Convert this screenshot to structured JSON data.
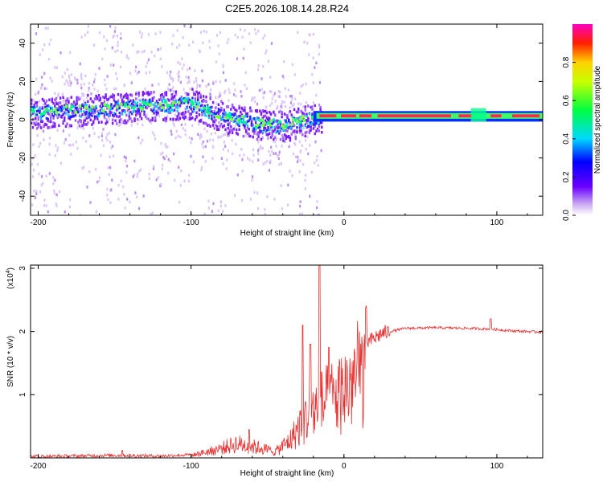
{
  "title": "C2E5.2026.108.14.28.R24",
  "chart_data": [
    {
      "type": "heatmap",
      "name": "spectrogram",
      "xlabel": "Height of straight line (km)",
      "ylabel": "Frequency (Hz)",
      "xlim": [
        -205,
        130
      ],
      "ylim": [
        -50,
        50
      ],
      "x_ticks": [
        -200,
        -100,
        0,
        100
      ],
      "x_tick_labels": [
        "-200",
        "-100",
        "0",
        "100"
      ],
      "y_ticks": [
        -40,
        -20,
        0,
        20,
        40
      ],
      "y_tick_labels": [
        "-40",
        "-20",
        "0",
        "20",
        "40"
      ],
      "ridge": [
        {
          "x": -205,
          "f": 4
        },
        {
          "x": -180,
          "f": 5
        },
        {
          "x": -160,
          "f": 6
        },
        {
          "x": -140,
          "f": 7
        },
        {
          "x": -120,
          "f": 8
        },
        {
          "x": -100,
          "f": 9
        },
        {
          "x": -90,
          "f": 5
        },
        {
          "x": -75,
          "f": 1
        },
        {
          "x": -55,
          "f": -2
        },
        {
          "x": -40,
          "f": -3
        },
        {
          "x": -25,
          "f": 0
        },
        {
          "x": -15,
          "f": 2
        },
        {
          "x": 0,
          "f": 2
        },
        {
          "x": 130,
          "f": 2
        }
      ],
      "colorbar": {
        "label": "Normalized spectral amplitude",
        "range": [
          0,
          1
        ],
        "ticks": [
          0.0,
          0.2,
          0.4,
          0.6,
          0.8
        ],
        "tick_labels": [
          "0.0",
          "0.2",
          "0.4",
          "0.6",
          "0.8"
        ]
      }
    },
    {
      "type": "line",
      "name": "snr",
      "xlabel": "Height of straight line (km)",
      "ylabel": "SNR (10 * v/v)",
      "scale_label": "(x10",
      "scale_exponent": "4",
      "xlim": [
        -205,
        130
      ],
      "ylim": [
        0,
        3.05
      ],
      "x_ticks": [
        -200,
        -100,
        0,
        100
      ],
      "x_tick_labels": [
        "-200",
        "-100",
        "0",
        "100"
      ],
      "y_ticks": [
        1,
        2,
        3
      ],
      "y_tick_labels": [
        "1",
        "2",
        "3"
      ],
      "line_color": "#e83030",
      "envelope": [
        {
          "x": -205,
          "y": 0.02
        },
        {
          "x": -150,
          "y": 0.04
        },
        {
          "x": -120,
          "y": 0.03
        },
        {
          "x": -100,
          "y": 0.05
        },
        {
          "x": -85,
          "y": 0.15
        },
        {
          "x": -70,
          "y": 0.28
        },
        {
          "x": -55,
          "y": 0.2
        },
        {
          "x": -45,
          "y": 0.12
        },
        {
          "x": -35,
          "y": 0.35
        },
        {
          "x": -25,
          "y": 0.8
        },
        {
          "x": -15,
          "y": 1.05
        },
        {
          "x": -5,
          "y": 1.2
        },
        {
          "x": 5,
          "y": 1.5
        },
        {
          "x": 15,
          "y": 1.82
        },
        {
          "x": 25,
          "y": 1.97
        },
        {
          "x": 40,
          "y": 2.05
        },
        {
          "x": 60,
          "y": 2.06
        },
        {
          "x": 80,
          "y": 2.05
        },
        {
          "x": 95,
          "y": 2.04
        },
        {
          "x": 110,
          "y": 2.01
        },
        {
          "x": 130,
          "y": 1.99
        }
      ],
      "spikes": [
        {
          "x": -145,
          "y": 0.12
        },
        {
          "x": -62,
          "y": 0.45
        },
        {
          "x": -27,
          "y": 2.1
        },
        {
          "x": -22,
          "y": 1.8
        },
        {
          "x": -16,
          "y": 3.05
        },
        {
          "x": -10,
          "y": 1.75
        },
        {
          "x": 96,
          "y": 2.2
        }
      ]
    }
  ]
}
